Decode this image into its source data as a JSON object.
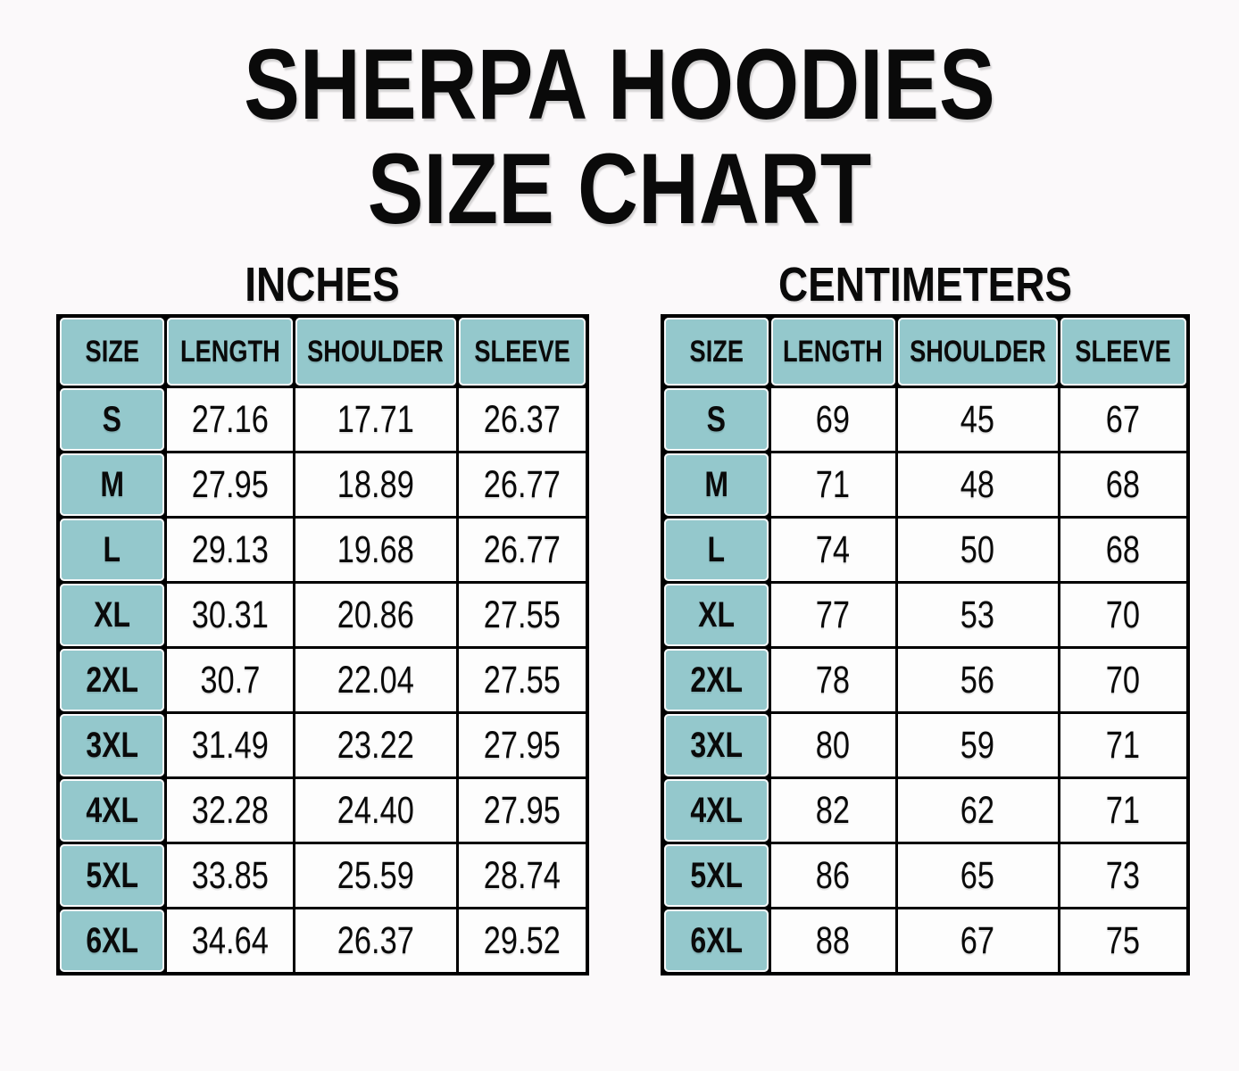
{
  "header": {
    "title_line1": "SHERPA HOODIES",
    "title_line2": "SIZE CHART"
  },
  "colors": {
    "teal": "#94C8CC",
    "grid_border": "#000000",
    "page_background": "#FBF9FA",
    "text": "#0A0A0A"
  },
  "tables": [
    {
      "title": "INCHES",
      "columns": [
        "SIZE",
        "LENGTH",
        "SHOULDER",
        "SLEEVE"
      ],
      "rows": [
        {
          "size": "S",
          "length": "27.16",
          "shoulder": "17.71",
          "sleeve": "26.37"
        },
        {
          "size": "M",
          "length": "27.95",
          "shoulder": "18.89",
          "sleeve": "26.77"
        },
        {
          "size": "L",
          "length": "29.13",
          "shoulder": "19.68",
          "sleeve": "26.77"
        },
        {
          "size": "XL",
          "length": "30.31",
          "shoulder": "20.86",
          "sleeve": "27.55"
        },
        {
          "size": "2XL",
          "length": "30.7",
          "shoulder": "22.04",
          "sleeve": "27.55"
        },
        {
          "size": "3XL",
          "length": "31.49",
          "shoulder": "23.22",
          "sleeve": "27.95"
        },
        {
          "size": "4XL",
          "length": "32.28",
          "shoulder": "24.40",
          "sleeve": "27.95"
        },
        {
          "size": "5XL",
          "length": "33.85",
          "shoulder": "25.59",
          "sleeve": "28.74"
        },
        {
          "size": "6XL",
          "length": "34.64",
          "shoulder": "26.37",
          "sleeve": "29.52"
        }
      ]
    },
    {
      "title": "CENTIMETERS",
      "columns": [
        "SIZE",
        "LENGTH",
        "SHOULDER",
        "SLEEVE"
      ],
      "rows": [
        {
          "size": "S",
          "length": "69",
          "shoulder": "45",
          "sleeve": "67"
        },
        {
          "size": "M",
          "length": "71",
          "shoulder": "48",
          "sleeve": "68"
        },
        {
          "size": "L",
          "length": "74",
          "shoulder": "50",
          "sleeve": "68"
        },
        {
          "size": "XL",
          "length": "77",
          "shoulder": "53",
          "sleeve": "70"
        },
        {
          "size": "2XL",
          "length": "78",
          "shoulder": "56",
          "sleeve": "70"
        },
        {
          "size": "3XL",
          "length": "80",
          "shoulder": "59",
          "sleeve": "71"
        },
        {
          "size": "4XL",
          "length": "82",
          "shoulder": "62",
          "sleeve": "71"
        },
        {
          "size": "5XL",
          "length": "86",
          "shoulder": "65",
          "sleeve": "73"
        },
        {
          "size": "6XL",
          "length": "88",
          "shoulder": "67",
          "sleeve": "75"
        }
      ]
    }
  ],
  "chart_data": [
    {
      "type": "table",
      "title": "INCHES",
      "columns": [
        "SIZE",
        "LENGTH",
        "SHOULDER",
        "SLEEVE"
      ],
      "rows": [
        [
          "S",
          27.16,
          17.71,
          26.37
        ],
        [
          "M",
          27.95,
          18.89,
          26.77
        ],
        [
          "L",
          29.13,
          19.68,
          26.77
        ],
        [
          "XL",
          30.31,
          20.86,
          27.55
        ],
        [
          "2XL",
          30.7,
          22.04,
          27.55
        ],
        [
          "3XL",
          31.49,
          23.22,
          27.95
        ],
        [
          "4XL",
          32.28,
          24.4,
          27.95
        ],
        [
          "5XL",
          33.85,
          25.59,
          28.74
        ],
        [
          "6XL",
          34.64,
          26.37,
          29.52
        ]
      ]
    },
    {
      "type": "table",
      "title": "CENTIMETERS",
      "columns": [
        "SIZE",
        "LENGTH",
        "SHOULDER",
        "SLEEVE"
      ],
      "rows": [
        [
          "S",
          69,
          45,
          67
        ],
        [
          "M",
          71,
          48,
          68
        ],
        [
          "L",
          74,
          50,
          68
        ],
        [
          "XL",
          77,
          53,
          70
        ],
        [
          "2XL",
          78,
          56,
          70
        ],
        [
          "3XL",
          80,
          59,
          71
        ],
        [
          "4XL",
          82,
          62,
          71
        ],
        [
          "5XL",
          86,
          65,
          73
        ],
        [
          "6XL",
          88,
          67,
          75
        ]
      ]
    }
  ]
}
